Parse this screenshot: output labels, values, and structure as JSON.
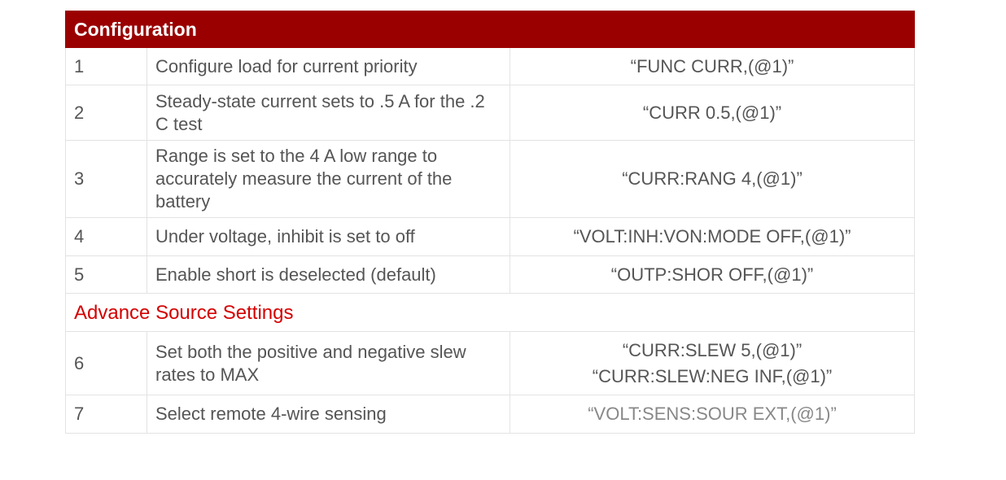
{
  "title": "Configuration",
  "rows": [
    {
      "n": "1",
      "desc": "Configure load for current priority",
      "cmd": [
        "“FUNC CURR,(@1)”"
      ]
    },
    {
      "n": "2",
      "desc": "Steady-state current sets to .5 A for the .2 C test",
      "cmd": [
        "“CURR 0.5,(@1)”"
      ]
    },
    {
      "n": "3",
      "desc": "Range is set to the 4 A low range to accurately measure the current of the battery",
      "cmd": [
        "“CURR:RANG 4,(@1)”"
      ]
    },
    {
      "n": "4",
      "desc": "Under voltage, inhibit is set to off",
      "cmd": [
        "“VOLT:INH:VON:MODE OFF,(@1)”"
      ]
    },
    {
      "n": "5",
      "desc": "Enable short is deselected (default)",
      "cmd": [
        "“OUTP:SHOR OFF,(@1)”"
      ]
    }
  ],
  "section": "Advance Source Settings",
  "rows2": [
    {
      "n": "6",
      "desc": "Set both the positive and negative slew rates to MAX",
      "cmd": [
        "“CURR:SLEW 5,(@1)”",
        "“CURR:SLEW:NEG INF,(@1)”"
      ]
    },
    {
      "n": "7",
      "desc": "Select remote 4-wire sensing",
      "cmd": [
        "“VOLT:SENS:SOUR EXT,(@1)”"
      ]
    }
  ],
  "colors": {
    "header": "#9a0000",
    "section": "#d40000"
  }
}
